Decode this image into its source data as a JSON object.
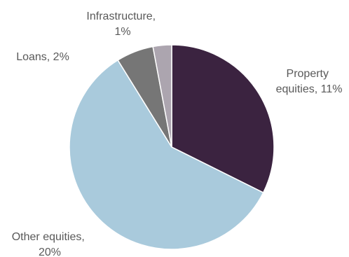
{
  "chart_data": {
    "type": "pie",
    "slices": [
      {
        "label_lines": [
          "Property",
          "equities, 11%"
        ],
        "value": 11,
        "color": "#3b2340"
      },
      {
        "label_lines": [
          "Other equities,",
          "20%"
        ],
        "value": 20,
        "color": "#a9cadc"
      },
      {
        "label_lines": [
          "Loans, 2%"
        ],
        "value": 2,
        "color": "#767676"
      },
      {
        "label_lines": [
          "Infrastructure,",
          "1%"
        ],
        "value": 1,
        "color": "#aca5af"
      }
    ]
  }
}
